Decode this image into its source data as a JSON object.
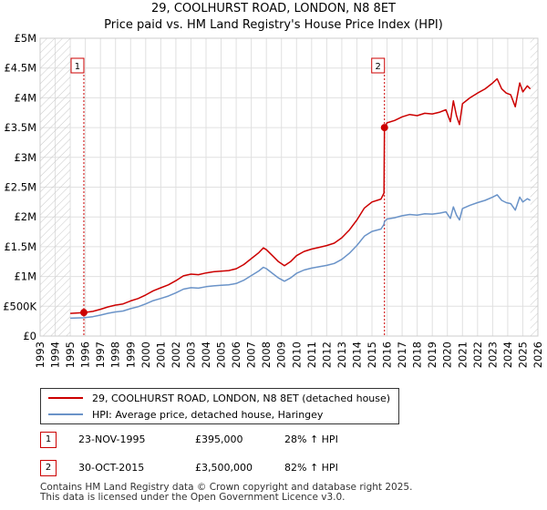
{
  "title_line1": "29, COOLHURST ROAD, LONDON, N8 8ET",
  "title_line2": "Price paid vs. HM Land Registry's House Price Index (HPI)",
  "colors": {
    "property": "#cc0000",
    "hpi": "#6a93c8",
    "grid": "#e0e0e0",
    "hatch": "#c0c0c0",
    "marker_border": "#cc0000"
  },
  "chart_data": {
    "type": "line",
    "x_range": [
      1993,
      2026
    ],
    "ylim": [
      0,
      5000000
    ],
    "y_ticks": [
      {
        "value": 0,
        "label": "£0"
      },
      {
        "value": 500000,
        "label": "£500K"
      },
      {
        "value": 1000000,
        "label": "£1M"
      },
      {
        "value": 1500000,
        "label": "£1.5M"
      },
      {
        "value": 2000000,
        "label": "£2M"
      },
      {
        "value": 2500000,
        "label": "£2.5M"
      },
      {
        "value": 3000000,
        "label": "£3M"
      },
      {
        "value": 3500000,
        "label": "£3.5M"
      },
      {
        "value": 4000000,
        "label": "£4M"
      },
      {
        "value": 4500000,
        "label": "£4.5M"
      },
      {
        "value": 5000000,
        "label": "£5M"
      }
    ],
    "x_ticks": [
      "1993",
      "1994",
      "1995",
      "1996",
      "1997",
      "1998",
      "1999",
      "2000",
      "2001",
      "2002",
      "2003",
      "2004",
      "2005",
      "2006",
      "2007",
      "2008",
      "2009",
      "2010",
      "2011",
      "2012",
      "2013",
      "2014",
      "2015",
      "2016",
      "2017",
      "2018",
      "2019",
      "2020",
      "2021",
      "2022",
      "2023",
      "2024",
      "2025",
      "2026"
    ],
    "data_start": 1995.0,
    "data_end": 2025.5,
    "series": [
      {
        "name": "29, COOLHURST ROAD, LONDON, N8 8ET (detached house)",
        "color": "#cc0000",
        "points": [
          [
            1995.0,
            381000
          ],
          [
            1995.9,
            395000
          ],
          [
            1996.5,
            415000
          ],
          [
            1997.0,
            450000
          ],
          [
            1997.5,
            490000
          ],
          [
            1998.0,
            520000
          ],
          [
            1998.5,
            540000
          ],
          [
            1999.0,
            590000
          ],
          [
            1999.5,
            630000
          ],
          [
            2000.0,
            690000
          ],
          [
            2000.5,
            760000
          ],
          [
            2001.0,
            810000
          ],
          [
            2001.5,
            860000
          ],
          [
            2002.0,
            930000
          ],
          [
            2002.5,
            1010000
          ],
          [
            2003.0,
            1040000
          ],
          [
            2003.5,
            1030000
          ],
          [
            2004.0,
            1060000
          ],
          [
            2004.5,
            1080000
          ],
          [
            2005.0,
            1090000
          ],
          [
            2005.5,
            1100000
          ],
          [
            2006.0,
            1130000
          ],
          [
            2006.5,
            1200000
          ],
          [
            2007.0,
            1300000
          ],
          [
            2007.5,
            1400000
          ],
          [
            2007.8,
            1480000
          ],
          [
            2008.0,
            1450000
          ],
          [
            2008.4,
            1350000
          ],
          [
            2008.8,
            1250000
          ],
          [
            2009.2,
            1180000
          ],
          [
            2009.6,
            1250000
          ],
          [
            2010.0,
            1350000
          ],
          [
            2010.5,
            1420000
          ],
          [
            2011.0,
            1460000
          ],
          [
            2011.5,
            1490000
          ],
          [
            2012.0,
            1520000
          ],
          [
            2012.5,
            1560000
          ],
          [
            2013.0,
            1650000
          ],
          [
            2013.5,
            1780000
          ],
          [
            2014.0,
            1950000
          ],
          [
            2014.5,
            2150000
          ],
          [
            2015.0,
            2250000
          ],
          [
            2015.6,
            2300000
          ],
          [
            2015.8,
            2400000
          ],
          [
            2015.83,
            3500000
          ],
          [
            2016.0,
            3580000
          ],
          [
            2016.5,
            3620000
          ],
          [
            2017.0,
            3680000
          ],
          [
            2017.5,
            3720000
          ],
          [
            2018.0,
            3700000
          ],
          [
            2018.5,
            3740000
          ],
          [
            2019.0,
            3730000
          ],
          [
            2019.5,
            3760000
          ],
          [
            2019.9,
            3800000
          ],
          [
            2020.2,
            3600000
          ],
          [
            2020.4,
            3950000
          ],
          [
            2020.6,
            3700000
          ],
          [
            2020.8,
            3550000
          ],
          [
            2021.0,
            3900000
          ],
          [
            2021.5,
            4000000
          ],
          [
            2022.0,
            4080000
          ],
          [
            2022.5,
            4150000
          ],
          [
            2023.0,
            4250000
          ],
          [
            2023.3,
            4320000
          ],
          [
            2023.6,
            4150000
          ],
          [
            2023.9,
            4080000
          ],
          [
            2024.2,
            4050000
          ],
          [
            2024.5,
            3850000
          ],
          [
            2024.8,
            4250000
          ],
          [
            2025.0,
            4100000
          ],
          [
            2025.3,
            4200000
          ],
          [
            2025.5,
            4150000
          ]
        ]
      },
      {
        "name": "HPI: Average price, detached house, Haringey",
        "color": "#6a93c8",
        "points": [
          [
            1995.0,
            300000
          ],
          [
            1995.9,
            308000
          ],
          [
            1996.5,
            325000
          ],
          [
            1997.0,
            352000
          ],
          [
            1997.5,
            382000
          ],
          [
            1998.0,
            405000
          ],
          [
            1998.5,
            420000
          ],
          [
            1999.0,
            460000
          ],
          [
            1999.5,
            492000
          ],
          [
            2000.0,
            540000
          ],
          [
            2000.5,
            595000
          ],
          [
            2001.0,
            632000
          ],
          [
            2001.5,
            672000
          ],
          [
            2002.0,
            725000
          ],
          [
            2002.5,
            788000
          ],
          [
            2003.0,
            812000
          ],
          [
            2003.5,
            805000
          ],
          [
            2004.0,
            828000
          ],
          [
            2004.5,
            843000
          ],
          [
            2005.0,
            851000
          ],
          [
            2005.5,
            859000
          ],
          [
            2006.0,
            882000
          ],
          [
            2006.5,
            937000
          ],
          [
            2007.0,
            1015000
          ],
          [
            2007.5,
            1093000
          ],
          [
            2007.8,
            1155000
          ],
          [
            2008.0,
            1132000
          ],
          [
            2008.4,
            1054000
          ],
          [
            2008.8,
            976000
          ],
          [
            2009.2,
            921000
          ],
          [
            2009.6,
            976000
          ],
          [
            2010.0,
            1054000
          ],
          [
            2010.5,
            1109000
          ],
          [
            2011.0,
            1140000
          ],
          [
            2011.5,
            1163000
          ],
          [
            2012.0,
            1187000
          ],
          [
            2012.5,
            1218000
          ],
          [
            2013.0,
            1288000
          ],
          [
            2013.5,
            1390000
          ],
          [
            2014.0,
            1522000
          ],
          [
            2014.5,
            1678000
          ],
          [
            2015.0,
            1757000
          ],
          [
            2015.6,
            1796000
          ],
          [
            2015.8,
            1874000
          ],
          [
            2015.83,
            1920000
          ],
          [
            2016.0,
            1965000
          ],
          [
            2016.5,
            1987000
          ],
          [
            2017.0,
            2020000
          ],
          [
            2017.5,
            2042000
          ],
          [
            2018.0,
            2031000
          ],
          [
            2018.5,
            2053000
          ],
          [
            2019.0,
            2047000
          ],
          [
            2019.5,
            2064000
          ],
          [
            2019.9,
            2086000
          ],
          [
            2020.2,
            1976000
          ],
          [
            2020.4,
            2168000
          ],
          [
            2020.6,
            2031000
          ],
          [
            2020.8,
            1949000
          ],
          [
            2021.0,
            2141000
          ],
          [
            2021.5,
            2196000
          ],
          [
            2022.0,
            2240000
          ],
          [
            2022.5,
            2278000
          ],
          [
            2023.0,
            2333000
          ],
          [
            2023.3,
            2372000
          ],
          [
            2023.6,
            2278000
          ],
          [
            2023.9,
            2240000
          ],
          [
            2024.2,
            2223000
          ],
          [
            2024.5,
            2114000
          ],
          [
            2024.8,
            2333000
          ],
          [
            2025.0,
            2251000
          ],
          [
            2025.3,
            2306000
          ],
          [
            2025.5,
            2278000
          ]
        ]
      }
    ],
    "sales": [
      {
        "marker": "1",
        "x": 1995.9,
        "y": 395000
      },
      {
        "marker": "2",
        "x": 2015.83,
        "y": 3500000
      }
    ]
  },
  "legend": {
    "property_label": "29, COOLHURST ROAD, LONDON, N8 8ET (detached house)",
    "hpi_label": "HPI: Average price, detached house, Haringey"
  },
  "transactions": [
    {
      "marker": "1",
      "date": "23-NOV-1995",
      "price": "£395,000",
      "hpi_change": "28% ↑ HPI"
    },
    {
      "marker": "2",
      "date": "30-OCT-2015",
      "price": "£3,500,000",
      "hpi_change": "82% ↑ HPI"
    }
  ],
  "footer_line1": "Contains HM Land Registry data © Crown copyright and database right 2025.",
  "footer_line2": "This data is licensed under the Open Government Licence v3.0."
}
